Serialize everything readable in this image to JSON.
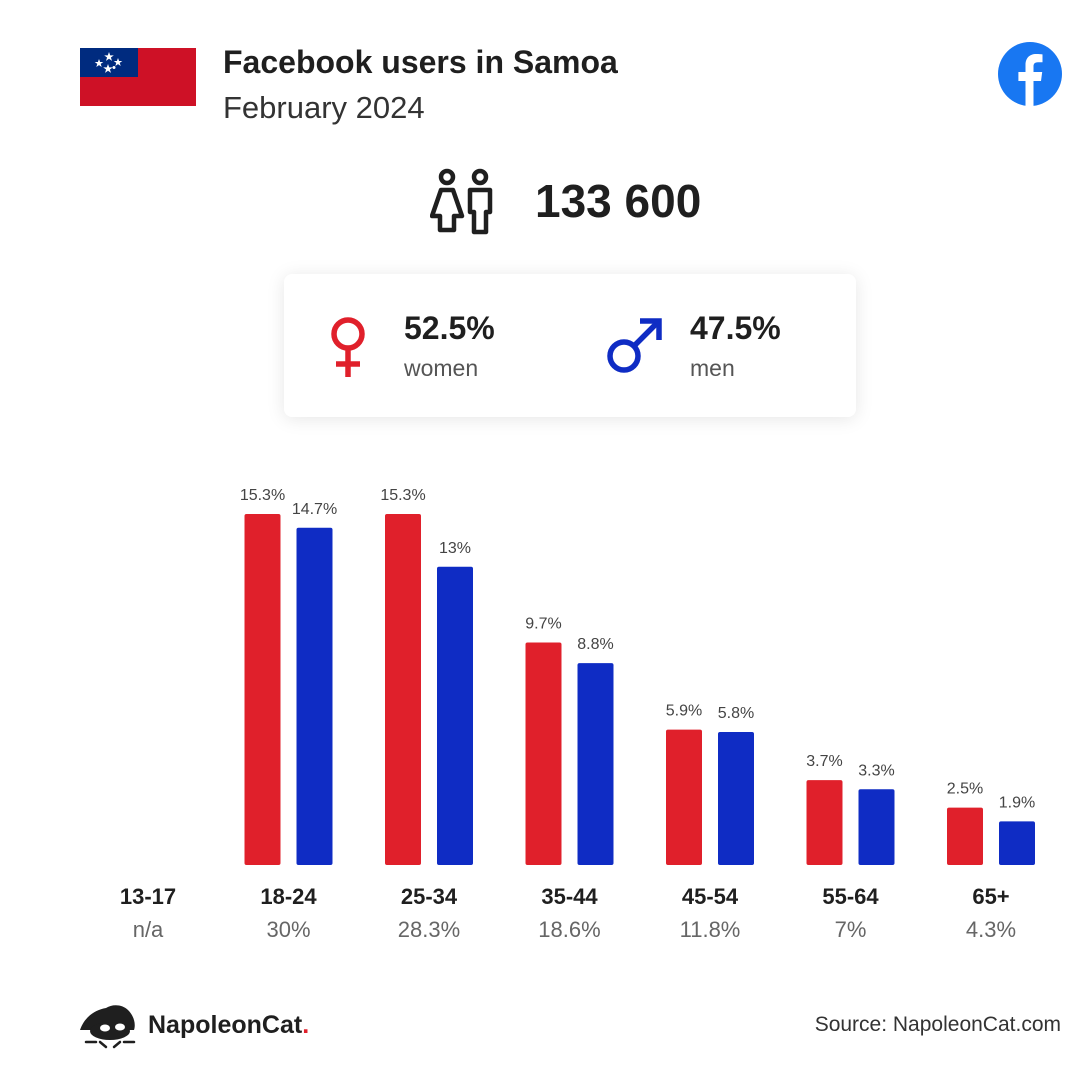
{
  "header": {
    "title": "Facebook users in Samoa",
    "subtitle": "February 2024",
    "flag_icon": "samoa-flag-icon",
    "brand_icon": "facebook-logo-icon"
  },
  "summary": {
    "total_icon": "people-icon",
    "total": "133 600",
    "women": {
      "icon": "female-symbol-icon",
      "percent": "52.5%",
      "label": "women",
      "color": "#e0202b"
    },
    "men": {
      "icon": "male-symbol-icon",
      "percent": "47.5%",
      "label": "men",
      "color": "#0f2cc4"
    }
  },
  "chart_data": {
    "type": "bar",
    "categories": [
      "13-17",
      "18-24",
      "25-34",
      "35-44",
      "45-54",
      "55-64",
      "65+"
    ],
    "category_totals": [
      "n/a",
      "30%",
      "28.3%",
      "18.6%",
      "11.8%",
      "7%",
      "4.3%"
    ],
    "series": [
      {
        "name": "women",
        "color": "#e0202b",
        "values": [
          null,
          15.3,
          15.3,
          9.7,
          5.9,
          3.7,
          2.5
        ],
        "labels": [
          null,
          "15.3%",
          "15.3%",
          "9.7%",
          "5.9%",
          "3.7%",
          "2.5%"
        ]
      },
      {
        "name": "men",
        "color": "#0f2cc4",
        "values": [
          null,
          14.7,
          13,
          8.8,
          5.8,
          3.3,
          1.9
        ],
        "labels": [
          null,
          "14.7%",
          "13%",
          "8.8%",
          "5.8%",
          "3.3%",
          "1.9%"
        ]
      }
    ],
    "unit": "%",
    "ylim": [
      0,
      15.3
    ],
    "grid": false,
    "legend": "none"
  },
  "footer": {
    "logo_icon": "napoleoncat-logo-icon",
    "brand_name": "NapoleonCat",
    "brand_dot": ".",
    "source": "Source: NapoleonCat.com"
  }
}
